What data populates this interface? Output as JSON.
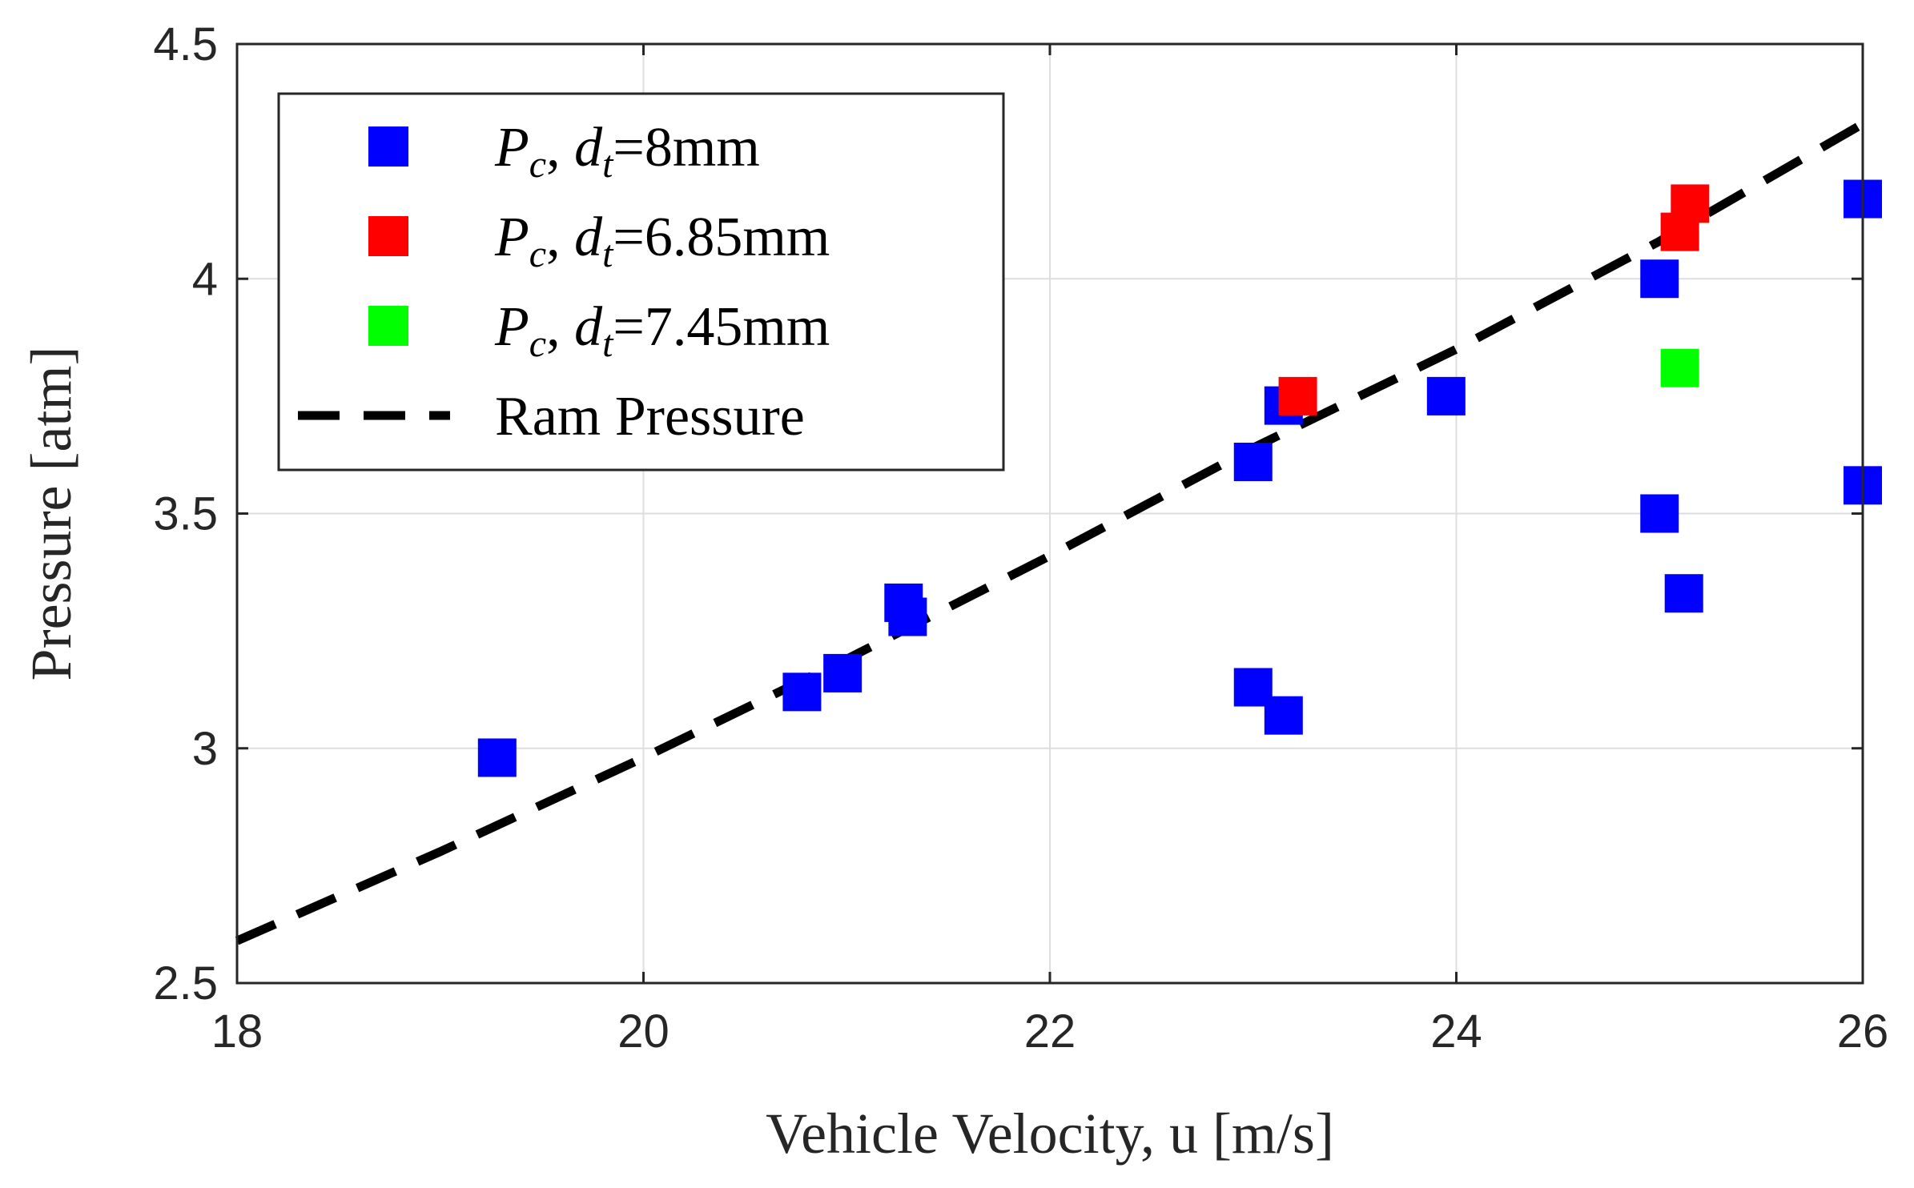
{
  "chart_data": {
    "type": "scatter",
    "title": "",
    "xlabel": "Vehicle Velocity, u [m/s]",
    "ylabel": "Pressure [atm]",
    "xlim": [
      18,
      26
    ],
    "ylim": [
      2.5,
      4.5
    ],
    "xticks": [
      18,
      20,
      22,
      24,
      26
    ],
    "yticks": [
      2.5,
      3,
      3.5,
      4,
      4.5
    ],
    "xtick_labels": [
      "18",
      "20",
      "22",
      "24",
      "26"
    ],
    "ytick_labels": [
      "2.5",
      "3",
      "3.5",
      "4",
      "4.5"
    ],
    "grid": true,
    "legend_position": "top-left",
    "series": [
      {
        "name": "P_c, d_t=8mm",
        "legend": {
          "symbol": "P",
          "symbol_sub": "c",
          "mid": ", ",
          "var": "d",
          "var_sub": "t",
          "value": "=8mm"
        },
        "color": "#0000ff",
        "marker": "square",
        "points": [
          [
            19.28,
            2.98
          ],
          [
            20.78,
            3.12
          ],
          [
            20.98,
            3.16
          ],
          [
            21.28,
            3.31
          ],
          [
            21.3,
            3.28
          ],
          [
            23.0,
            3.61
          ],
          [
            23.15,
            3.73
          ],
          [
            23.0,
            3.13
          ],
          [
            23.15,
            3.07
          ],
          [
            23.95,
            3.75
          ],
          [
            25.0,
            4.0
          ],
          [
            25.0,
            3.5
          ],
          [
            25.12,
            3.33
          ],
          [
            26.0,
            4.17
          ],
          [
            26.0,
            3.56
          ]
        ]
      },
      {
        "name": "P_c, d_t=6.85mm",
        "legend": {
          "symbol": "P",
          "symbol_sub": "c",
          "mid": ", ",
          "var": "d",
          "var_sub": "t",
          "value": "=6.85mm"
        },
        "color": "#ff0000",
        "marker": "square",
        "points": [
          [
            23.22,
            3.75
          ],
          [
            25.15,
            4.16
          ],
          [
            25.1,
            4.1
          ]
        ]
      },
      {
        "name": "P_c, d_t=7.45mm",
        "legend": {
          "symbol": "P",
          "symbol_sub": "c",
          "mid": ", ",
          "var": "d",
          "var_sub": "t",
          "value": "=7.45mm"
        },
        "color": "#00ff00",
        "marker": "square",
        "points": [
          [
            25.1,
            3.81
          ]
        ]
      },
      {
        "name": "Ram Pressure",
        "legend": {
          "text": "Ram Pressure"
        },
        "color": "#000000",
        "style": "dashed-line",
        "points": [
          [
            18.0,
            2.59
          ],
          [
            19.0,
            2.78
          ],
          [
            20.0,
            2.98
          ],
          [
            21.0,
            3.19
          ],
          [
            22.0,
            3.41
          ],
          [
            23.0,
            3.64
          ],
          [
            24.0,
            3.85
          ],
          [
            25.0,
            4.08
          ],
          [
            26.0,
            4.33
          ]
        ]
      }
    ]
  }
}
